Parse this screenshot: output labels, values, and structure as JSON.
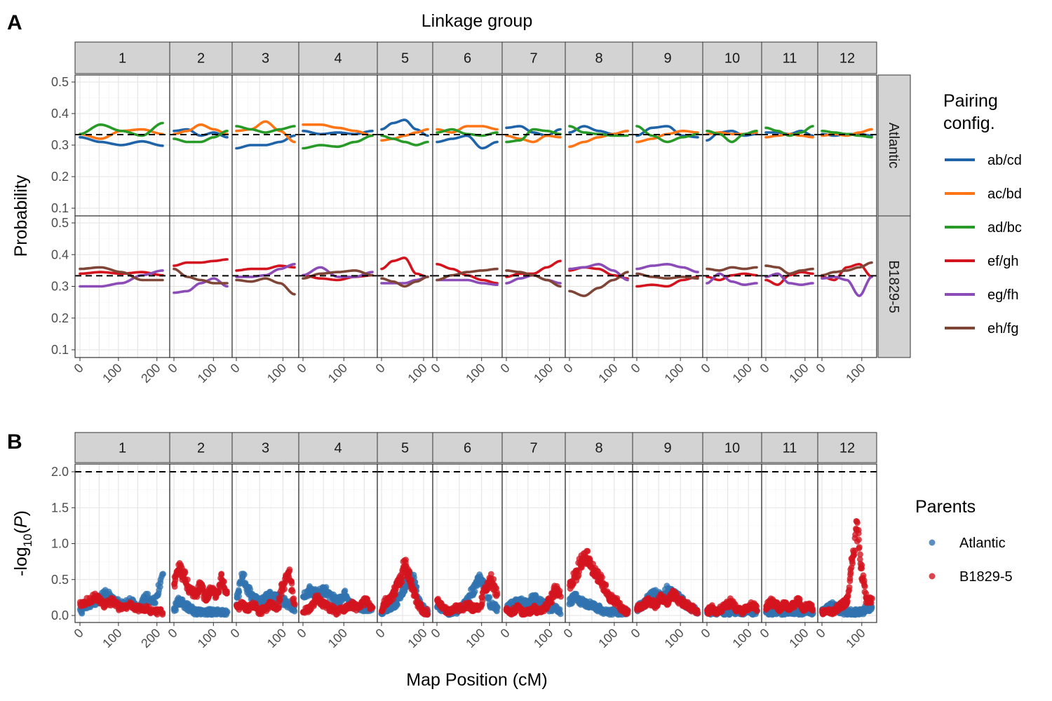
{
  "figure": {
    "tag_a": "A",
    "tag_b": "B"
  },
  "colors": {
    "ab/cd": "#1f63a8",
    "ac/bd": "#ff7415",
    "ad/bc": "#289a27",
    "ef/gh": "#d3141f",
    "eg/fh": "#8b4cb8",
    "eh/fg": "#7f4637",
    "Atlantic": "#3173b0",
    "B1829-5": "#d3141f"
  },
  "chart_data": [
    {
      "type": "line",
      "panel": "A",
      "top_label": "Linkage group",
      "ylabel": "Probability",
      "ylim": [
        0.1,
        0.5
      ],
      "yticks": [
        "0.1",
        "0.2",
        "0.3",
        "0.4",
        "0.5"
      ],
      "ref_line": 0.3333,
      "facet_columns": [
        "1",
        "2",
        "3",
        "4",
        "5",
        "6",
        "7",
        "8",
        "9",
        "10",
        "11",
        "12"
      ],
      "facet_rows": [
        "Atlantic",
        "B1829-5"
      ],
      "legend": {
        "title_line1": "Pairing",
        "title_line2": "config.",
        "entries": [
          "ab/cd",
          "ac/bd",
          "ad/bc",
          "ef/gh",
          "eg/fh",
          "eh/fg"
        ]
      },
      "x_frac_knots": [
        0,
        0.25,
        0.5,
        0.75,
        1
      ],
      "series": {
        "Atlantic": [
          {
            "ab/cd": [
              0.325,
              0.31,
              0.3,
              0.312,
              0.298
            ],
            "ac/bd": [
              0.335,
              0.32,
              0.345,
              0.35,
              0.335
            ],
            "ad/bc": [
              0.335,
              0.365,
              0.345,
              0.33,
              0.37
            ]
          },
          {
            "ab/cd": [
              0.345,
              0.35,
              0.33,
              0.34,
              0.325
            ],
            "ac/bd": [
              0.335,
              0.345,
              0.365,
              0.35,
              0.335
            ],
            "ad/bc": [
              0.32,
              0.31,
              0.31,
              0.325,
              0.345
            ]
          },
          {
            "ab/cd": [
              0.29,
              0.3,
              0.3,
              0.31,
              0.33
            ],
            "ac/bd": [
              0.345,
              0.35,
              0.375,
              0.345,
              0.31
            ],
            "ad/bc": [
              0.36,
              0.35,
              0.34,
              0.35,
              0.36
            ]
          },
          {
            "ab/cd": [
              0.345,
              0.335,
              0.34,
              0.335,
              0.345
            ],
            "ac/bd": [
              0.365,
              0.365,
              0.355,
              0.345,
              0.33
            ],
            "ad/bc": [
              0.29,
              0.3,
              0.295,
              0.31,
              0.33
            ]
          },
          {
            "ab/cd": [
              0.35,
              0.37,
              0.38,
              0.35,
              0.33
            ],
            "ac/bd": [
              0.315,
              0.32,
              0.33,
              0.34,
              0.35
            ],
            "ad/bc": [
              0.33,
              0.32,
              0.31,
              0.3,
              0.31
            ]
          },
          {
            "ab/cd": [
              0.31,
              0.32,
              0.33,
              0.29,
              0.31
            ],
            "ac/bd": [
              0.35,
              0.34,
              0.36,
              0.36,
              0.35
            ],
            "ad/bc": [
              0.34,
              0.35,
              0.335,
              0.33,
              0.34
            ]
          },
          {
            "ab/cd": [
              0.355,
              0.36,
              0.34,
              0.33,
              0.35
            ],
            "ac/bd": [
              0.33,
              0.32,
              0.31,
              0.33,
              0.325
            ],
            "ad/bc": [
              0.31,
              0.315,
              0.35,
              0.345,
              0.335
            ]
          },
          {
            "ab/cd": [
              0.34,
              0.36,
              0.345,
              0.335,
              0.345
            ],
            "ac/bd": [
              0.295,
              0.31,
              0.325,
              0.335,
              0.345
            ],
            "ad/bc": [
              0.36,
              0.34,
              0.335,
              0.33,
              0.33
            ]
          },
          {
            "ab/cd": [
              0.33,
              0.355,
              0.36,
              0.33,
              0.325
            ],
            "ac/bd": [
              0.31,
              0.32,
              0.335,
              0.345,
              0.34
            ],
            "ad/bc": [
              0.36,
              0.33,
              0.31,
              0.325,
              0.335
            ]
          },
          {
            "ab/cd": [
              0.315,
              0.34,
              0.345,
              0.33,
              0.335
            ],
            "ac/bd": [
              0.335,
              0.34,
              0.335,
              0.335,
              0.34
            ],
            "ad/bc": [
              0.345,
              0.335,
              0.31,
              0.335,
              0.345
            ]
          },
          {
            "ab/cd": [
              0.34,
              0.34,
              0.335,
              0.345,
              0.33
            ],
            "ac/bd": [
              0.325,
              0.33,
              0.335,
              0.33,
              0.325
            ],
            "ad/bc": [
              0.355,
              0.345,
              0.33,
              0.34,
              0.36
            ]
          },
          {
            "ab/cd": [
              0.335,
              0.33,
              0.335,
              0.335,
              0.33
            ],
            "ac/bd": [
              0.33,
              0.335,
              0.33,
              0.34,
              0.35
            ],
            "ad/bc": [
              0.345,
              0.34,
              0.335,
              0.33,
              0.325
            ]
          }
        ],
        "B1829-5": [
          {
            "ef/gh": [
              0.34,
              0.345,
              0.34,
              0.345,
              0.335
            ],
            "eg/fh": [
              0.3,
              0.3,
              0.31,
              0.335,
              0.35
            ],
            "eh/fg": [
              0.355,
              0.36,
              0.345,
              0.32,
              0.32
            ]
          },
          {
            "ef/gh": [
              0.365,
              0.375,
              0.375,
              0.38,
              0.385
            ],
            "eg/fh": [
              0.28,
              0.285,
              0.31,
              0.325,
              0.3
            ],
            "eh/fg": [
              0.355,
              0.33,
              0.32,
              0.31,
              0.31
            ]
          },
          {
            "ef/gh": [
              0.35,
              0.355,
              0.355,
              0.365,
              0.36
            ],
            "eg/fh": [
              0.33,
              0.33,
              0.335,
              0.355,
              0.37
            ],
            "eh/fg": [
              0.32,
              0.315,
              0.325,
              0.31,
              0.275
            ]
          },
          {
            "ef/gh": [
              0.335,
              0.325,
              0.32,
              0.33,
              0.335
            ],
            "eg/fh": [
              0.335,
              0.36,
              0.33,
              0.33,
              0.345
            ],
            "eh/fg": [
              0.325,
              0.34,
              0.345,
              0.35,
              0.335
            ]
          },
          {
            "ef/gh": [
              0.355,
              0.38,
              0.39,
              0.34,
              0.33
            ],
            "eg/fh": [
              0.31,
              0.31,
              0.31,
              0.32,
              0.33
            ],
            "eh/fg": [
              0.325,
              0.315,
              0.3,
              0.315,
              0.33
            ]
          },
          {
            "ef/gh": [
              0.37,
              0.355,
              0.335,
              0.32,
              0.31
            ],
            "eg/fh": [
              0.32,
              0.32,
              0.32,
              0.31,
              0.305
            ],
            "eh/fg": [
              0.32,
              0.335,
              0.345,
              0.35,
              0.355
            ]
          },
          {
            "ef/gh": [
              0.33,
              0.34,
              0.34,
              0.36,
              0.38
            ],
            "eg/fh": [
              0.31,
              0.325,
              0.335,
              0.32,
              0.31
            ],
            "eh/fg": [
              0.35,
              0.345,
              0.335,
              0.32,
              0.3
            ]
          },
          {
            "ef/gh": [
              0.35,
              0.36,
              0.355,
              0.335,
              0.325
            ],
            "eg/fh": [
              0.355,
              0.36,
              0.37,
              0.35,
              0.32
            ],
            "eh/fg": [
              0.285,
              0.27,
              0.295,
              0.32,
              0.345
            ]
          },
          {
            "ef/gh": [
              0.3,
              0.305,
              0.3,
              0.32,
              0.33
            ],
            "eg/fh": [
              0.355,
              0.365,
              0.37,
              0.36,
              0.345
            ],
            "eh/fg": [
              0.34,
              0.33,
              0.325,
              0.33,
              0.325
            ]
          },
          {
            "ef/gh": [
              0.33,
              0.32,
              0.335,
              0.34,
              0.335
            ],
            "eg/fh": [
              0.31,
              0.34,
              0.315,
              0.305,
              0.31
            ],
            "eh/fg": [
              0.355,
              0.35,
              0.36,
              0.355,
              0.36
            ]
          },
          {
            "ef/gh": [
              0.32,
              0.305,
              0.335,
              0.345,
              0.34
            ],
            "eg/fh": [
              0.33,
              0.34,
              0.31,
              0.305,
              0.31
            ],
            "eh/fg": [
              0.365,
              0.36,
              0.34,
              0.35,
              0.355
            ]
          },
          {
            "ef/gh": [
              0.33,
              0.32,
              0.36,
              0.37,
              0.33
            ],
            "eg/fh": [
              0.325,
              0.33,
              0.32,
              0.27,
              0.33
            ],
            "eh/fg": [
              0.335,
              0.345,
              0.35,
              0.36,
              0.375
            ]
          }
        ]
      }
    },
    {
      "type": "scatter",
      "panel": "B",
      "xlabel": "Map Position (cM)",
      "ylabel_prefix": "-log",
      "ylabel_sub": "10",
      "ylabel_open": "(",
      "ylabel_var": "P",
      "ylabel_close": ")",
      "ylim": [
        0,
        2.0
      ],
      "yticks": [
        "0.0",
        "0.5",
        "1.0",
        "1.5",
        "2.0"
      ],
      "ref_line": 2.0,
      "facet_columns": [
        "1",
        "2",
        "3",
        "4",
        "5",
        "6",
        "7",
        "8",
        "9",
        "10",
        "11",
        "12"
      ],
      "legend": {
        "title": "Parents",
        "entries": [
          "Atlantic",
          "B1829-5"
        ]
      },
      "x_frac_knots": [
        0,
        0.1,
        0.2,
        0.3,
        0.4,
        0.5,
        0.6,
        0.7,
        0.8,
        0.9,
        1
      ],
      "series": {
        "Atlantic": [
          [
            0.05,
            0.15,
            0.2,
            0.3,
            0.25,
            0.15,
            0.2,
            0.1,
            0.25,
            0.2,
            0.5
          ],
          [
            0.1,
            0.2,
            0.15,
            0.1,
            0.05,
            0.05,
            0.05,
            0.05,
            0.05,
            0.05,
            0.05
          ],
          [
            0.2,
            0.55,
            0.35,
            0.25,
            0.2,
            0.25,
            0.3,
            0.25,
            0.2,
            0.15,
            0.1
          ],
          [
            0.25,
            0.35,
            0.3,
            0.35,
            0.25,
            0.2,
            0.3,
            0.15,
            0.1,
            0.1,
            0.1
          ],
          [
            0.05,
            0.1,
            0.1,
            0.15,
            0.25,
            0.4,
            0.55,
            0.5,
            0.2,
            0.1,
            0.05
          ],
          [
            0.1,
            0.1,
            0.05,
            0.05,
            0.1,
            0.2,
            0.35,
            0.5,
            0.4,
            0.15,
            0.1
          ],
          [
            0.1,
            0.15,
            0.2,
            0.2,
            0.15,
            0.25,
            0.2,
            0.15,
            0.1,
            0.1,
            0.05
          ],
          [
            0.2,
            0.25,
            0.2,
            0.15,
            0.15,
            0.1,
            0.05,
            0.05,
            0.05,
            0.05,
            0.05
          ],
          [
            0.1,
            0.15,
            0.25,
            0.3,
            0.25,
            0.35,
            0.3,
            0.25,
            0.15,
            0.1,
            0.05
          ],
          [
            0.05,
            0.05,
            0.05,
            0.05,
            0.05,
            0.05,
            0.05,
            0.05,
            0.05,
            0.05,
            0.05
          ],
          [
            0.05,
            0.05,
            0.05,
            0.05,
            0.05,
            0.05,
            0.05,
            0.05,
            0.05,
            0.05,
            0.05
          ],
          [
            0.05,
            0.1,
            0.15,
            0.1,
            0.05,
            0.05,
            0.05,
            0.05,
            0.05,
            0.1,
            0.1
          ]
        ],
        "B1829-5": [
          [
            0.15,
            0.2,
            0.25,
            0.15,
            0.2,
            0.1,
            0.15,
            0.1,
            0.1,
            0.05,
            0.05
          ],
          [
            0.45,
            0.65,
            0.55,
            0.35,
            0.3,
            0.4,
            0.25,
            0.35,
            0.3,
            0.5,
            0.3
          ],
          [
            0.1,
            0.15,
            0.1,
            0.15,
            0.05,
            0.1,
            0.15,
            0.1,
            0.4,
            0.6,
            0.2
          ],
          [
            0.05,
            0.1,
            0.25,
            0.15,
            0.1,
            0.05,
            0.1,
            0.15,
            0.1,
            0.2,
            0.1
          ],
          [
            0.1,
            0.2,
            0.25,
            0.35,
            0.5,
            0.7,
            0.55,
            0.3,
            0.15,
            0.05,
            0.05
          ],
          [
            0.2,
            0.1,
            0.05,
            0.1,
            0.1,
            0.15,
            0.1,
            0.1,
            0.35,
            0.5,
            0.3
          ],
          [
            0.1,
            0.05,
            0.1,
            0.05,
            0.05,
            0.1,
            0.05,
            0.1,
            0.2,
            0.35,
            0.3
          ],
          [
            0.4,
            0.55,
            0.75,
            0.8,
            0.65,
            0.55,
            0.4,
            0.25,
            0.2,
            0.1,
            0.05
          ],
          [
            0.1,
            0.15,
            0.2,
            0.15,
            0.25,
            0.2,
            0.3,
            0.2,
            0.15,
            0.1,
            0.05
          ],
          [
            0.05,
            0.1,
            0.05,
            0.1,
            0.15,
            0.2,
            0.1,
            0.05,
            0.1,
            0.15,
            0.1
          ],
          [
            0.1,
            0.2,
            0.15,
            0.1,
            0.15,
            0.1,
            0.15,
            0.2,
            0.1,
            0.15,
            0.1
          ],
          [
            0.05,
            0.05,
            0.05,
            0.1,
            0.15,
            0.2,
            0.7,
            1.2,
            0.6,
            0.2,
            0.2
          ]
        ]
      }
    }
  ],
  "x_axis": {
    "column_ticks": [
      [
        "0",
        "100",
        "200"
      ],
      [
        "0",
        "100"
      ],
      [
        "0",
        "100"
      ],
      [
        "0",
        "100"
      ],
      [
        "0",
        "100"
      ],
      [
        "0",
        "100"
      ],
      [
        "0",
        "100"
      ],
      [
        "0",
        "100"
      ],
      [
        "0",
        "100"
      ],
      [
        "0",
        "100"
      ],
      [
        "0",
        "100"
      ],
      [
        "0",
        "100"
      ]
    ]
  }
}
